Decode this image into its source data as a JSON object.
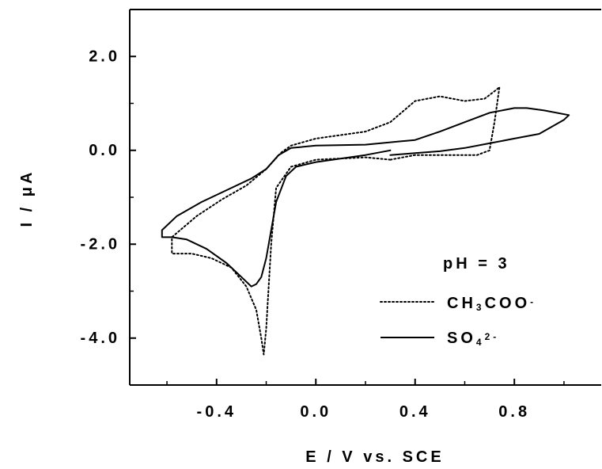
{
  "chart_data": {
    "type": "line",
    "title": "",
    "xlabel": "E / V vs. SCE",
    "ylabel": "I / μA",
    "xlim": [
      -0.75,
      1.15
    ],
    "ylim": [
      -5.0,
      3.0
    ],
    "x_ticks": [
      -0.4,
      0.0,
      0.4,
      0.8
    ],
    "y_ticks": [
      2.0,
      0.0,
      -2.0,
      -4.0
    ],
    "x_tick_labels": [
      "-0.4",
      "0.0",
      "0.4",
      "0.8"
    ],
    "y_tick_labels": [
      "2.0",
      "0.0",
      "-2.0",
      "-4.0"
    ],
    "annotation": "pH = 3",
    "legend_position": "bottom-right",
    "legend": [
      {
        "base": "CH",
        "sub1": "3",
        "middle": "COO",
        "sup": "-",
        "tail": ""
      },
      {
        "base": "SO",
        "sub1": "4",
        "middle": "",
        "sup": "2-",
        "tail": ""
      }
    ],
    "series": [
      {
        "style": "dotted",
        "color": "#000000",
        "x": [
          0.3,
          0.2,
          0.0,
          -0.1,
          -0.16,
          -0.18,
          -0.2,
          -0.21,
          -0.22,
          -0.24,
          -0.28,
          -0.34,
          -0.42,
          -0.5,
          -0.58,
          -0.58,
          -0.48,
          -0.38,
          -0.28,
          -0.2,
          -0.14,
          -0.1,
          0.0,
          0.2,
          0.3,
          0.4,
          0.5,
          0.6,
          0.68,
          0.73,
          0.74,
          0.72,
          0.7,
          0.65,
          0.58,
          0.5,
          0.4,
          0.3
        ],
        "y": [
          -0.2,
          -0.15,
          -0.2,
          -0.35,
          -0.8,
          -2.0,
          -3.8,
          -4.35,
          -4.0,
          -3.4,
          -2.9,
          -2.5,
          -2.3,
          -2.2,
          -2.2,
          -1.85,
          -1.4,
          -1.05,
          -0.75,
          -0.4,
          -0.05,
          0.1,
          0.25,
          0.4,
          0.6,
          1.05,
          1.15,
          1.05,
          1.1,
          1.3,
          1.35,
          0.6,
          0.0,
          -0.1,
          -0.1,
          -0.1,
          -0.1,
          -0.2
        ]
      },
      {
        "style": "solid",
        "color": "#000000",
        "x": [
          0.3,
          0.2,
          0.0,
          -0.08,
          -0.12,
          -0.16,
          -0.18,
          -0.2,
          -0.22,
          -0.24,
          -0.26,
          -0.3,
          -0.36,
          -0.44,
          -0.52,
          -0.58,
          -0.62,
          -0.62,
          -0.56,
          -0.46,
          -0.36,
          -0.26,
          -0.2,
          -0.15,
          -0.1,
          0.0,
          0.2,
          0.4,
          0.5,
          0.6,
          0.7,
          0.8,
          0.85,
          0.92,
          1.02,
          1.0,
          0.9,
          0.8,
          0.7,
          0.6,
          0.5,
          0.4,
          0.3
        ],
        "y": [
          0.0,
          -0.1,
          -0.25,
          -0.35,
          -0.55,
          -1.1,
          -1.7,
          -2.3,
          -2.7,
          -2.85,
          -2.9,
          -2.7,
          -2.4,
          -2.1,
          -1.9,
          -1.85,
          -1.85,
          -1.7,
          -1.4,
          -1.1,
          -0.85,
          -0.6,
          -0.4,
          -0.1,
          0.05,
          0.1,
          0.12,
          0.22,
          0.4,
          0.6,
          0.8,
          0.9,
          0.9,
          0.85,
          0.75,
          0.65,
          0.35,
          0.25,
          0.15,
          0.05,
          -0.02,
          -0.06,
          -0.1
        ]
      }
    ]
  }
}
